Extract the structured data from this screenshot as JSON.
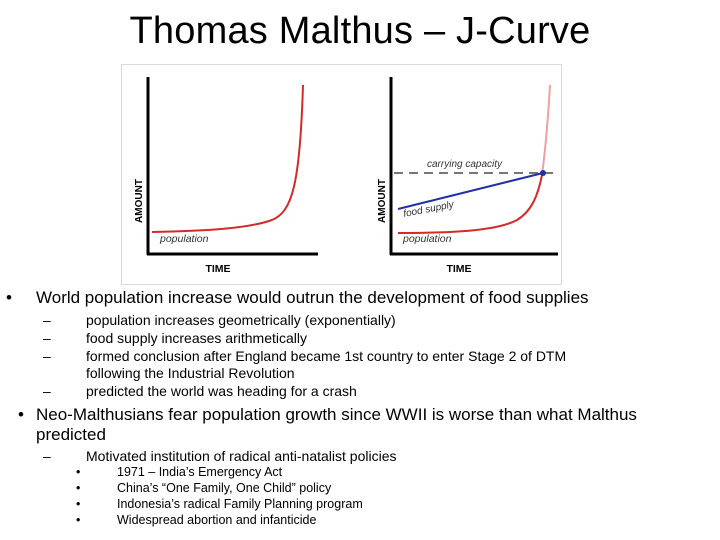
{
  "slide": {
    "title": "Thomas Malthus – J-Curve"
  },
  "figure": {
    "left_chart": {
      "xlabel": "TIME",
      "ylabel": "AMOUNT",
      "curve_label": "population"
    },
    "right_chart": {
      "xlabel": "TIME",
      "ylabel": "AMOUNT",
      "carrying_label": "carrying capacity",
      "food_label": "food supply",
      "population_label": "population"
    }
  },
  "bullets": {
    "level1_marker": "•",
    "level2_marker": "–",
    "level3_marker": "•",
    "b1": "World population increase would outrun the development of food supplies",
    "b1_subs": [
      "population increases geometrically (exponentially)",
      "food supply increases arithmetically",
      "formed conclusion after England became 1st country to enter Stage 2 of DTM",
      "following the Industrial Revolution",
      "predicted the world was heading for a crash"
    ],
    "b2_line1": "Neo-Malthusians fear population growth since WWII is worse than what  Malthus",
    "b2_line2": "predicted",
    "b2_sub": "Motivated institution of radical anti-natalist policies",
    "b2_subsubs": [
      "1971 – India’s Emergency Act",
      "China’s “One Family, One Child” policy",
      "Indonesia’s radical Family Planning program",
      "Widespread abortion and infanticide"
    ]
  },
  "colors": {
    "population_curve": "#d42a2a",
    "pale_curve": "#f0a0a0",
    "food_line": "#2230a8",
    "capacity_line": "#777777"
  }
}
